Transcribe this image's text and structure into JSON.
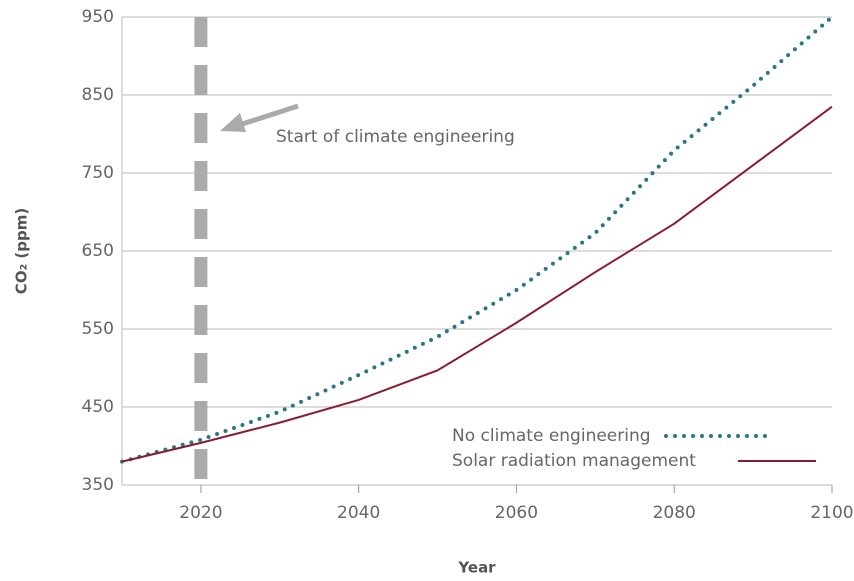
{
  "chart_data": {
    "type": "line",
    "x_label": "Year",
    "y_label": "CO₂ (ppm)",
    "x": [
      2010,
      2020,
      2030,
      2040,
      2050,
      2060,
      2070,
      2080,
      2090,
      2100
    ],
    "series": [
      {
        "name": "No climate engineering",
        "color": "#2b7589",
        "style": "dotted",
        "values": [
          380,
          408,
          444,
          491,
          540,
          600,
          673,
          779,
          862,
          950
        ]
      },
      {
        "name": "Solar radiation management",
        "color": "#8a1c30",
        "style": "solid",
        "values": [
          380,
          404,
          430,
          459,
          497,
          558,
          623,
          685,
          760,
          835
        ]
      }
    ],
    "xlim": [
      2010,
      2100
    ],
    "xticks": [
      2020,
      2040,
      2060,
      2080,
      2100
    ],
    "ylim": [
      350,
      950
    ],
    "yticks": [
      350,
      450,
      550,
      650,
      750,
      850,
      950
    ],
    "grid": true,
    "legend": "lower right",
    "annotation": {
      "text": "Start of climate engineering",
      "x": 2020
    }
  }
}
